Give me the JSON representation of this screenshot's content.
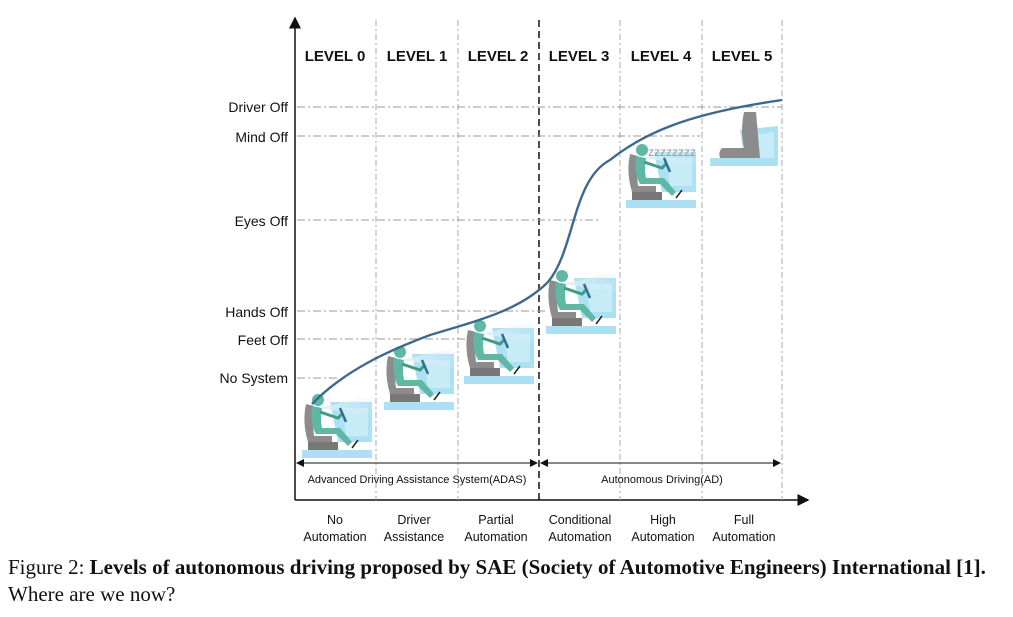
{
  "levels": [
    {
      "label": "LEVEL 0",
      "bottom1": "No",
      "bottom2": "Automation"
    },
    {
      "label": "LEVEL 1",
      "bottom1": "Driver",
      "bottom2": "Assistance"
    },
    {
      "label": "LEVEL 2",
      "bottom1": "Partial",
      "bottom2": "Automation"
    },
    {
      "label": "LEVEL 3",
      "bottom1": "Conditional",
      "bottom2": "Automation"
    },
    {
      "label": "LEVEL 4",
      "bottom1": "High",
      "bottom2": "Automation"
    },
    {
      "label": "LEVEL 5",
      "bottom1": "Full",
      "bottom2": "Automation"
    }
  ],
  "y_labels": [
    "Driver Off",
    "Mind Off",
    "Eyes Off",
    "Hands Off",
    "Feet Off",
    "No System"
  ],
  "spans": {
    "adas": "Advanced Driving Assistance System(ADAS)",
    "ad": "Autonomous Driving(AD)"
  },
  "sleep_text": "zzzzzzzz",
  "caption": {
    "prefix": "Figure 2: ",
    "bold": "Levels of autonomous driving proposed by SAE (Society of Automotive Engineers) International [1].",
    "rest": " Where are we now?"
  },
  "colors": {
    "curve": "#3d6a8c",
    "dash": "#999999",
    "seat": "#8c8c8c",
    "driver": "#5fb8a3",
    "cabin": "#aee0f4",
    "beam": "#d8eef8"
  }
}
